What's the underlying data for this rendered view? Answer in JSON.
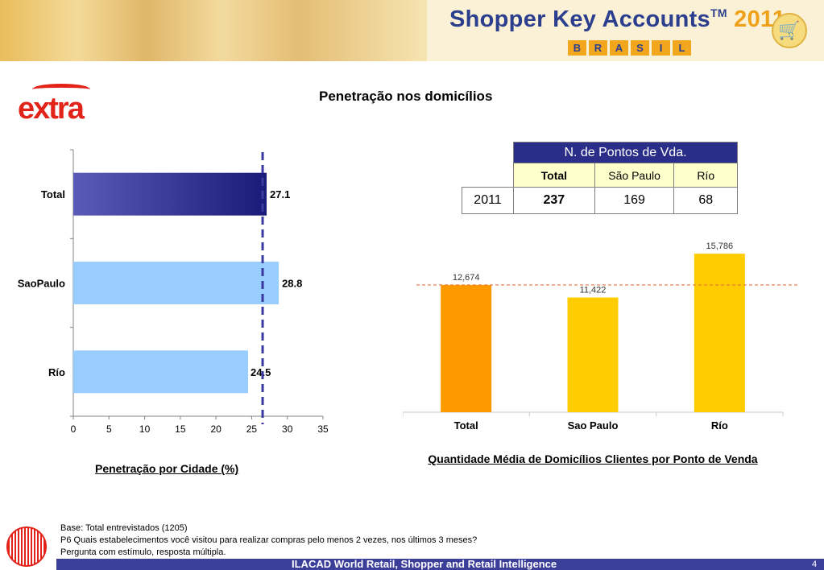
{
  "header": {
    "brand_title": "Shopper Key Accounts",
    "brand_tm": "TM",
    "brand_year": "2011",
    "brand_country_letters": [
      "B",
      "R",
      "A",
      "S",
      "I",
      "L"
    ],
    "cart_icon": "shopping-cart-icon"
  },
  "logo": {
    "text": "extra",
    "color": "#e2231a"
  },
  "page_title": "Penetração nos domicílios",
  "chart_data": [
    {
      "type": "bar",
      "orientation": "horizontal",
      "categories": [
        "Total",
        "SaoPaulo",
        "Río"
      ],
      "values": [
        27.1,
        28.8,
        24.5
      ],
      "value_labels": [
        "27.1",
        "28.8",
        "24.5"
      ],
      "xlim": [
        0,
        35
      ],
      "xticks": [
        0,
        5,
        10,
        15,
        20,
        25,
        30,
        35
      ],
      "reference_line": 27.1,
      "caption": "Penetração por Cidade (%)",
      "colors": {
        "highlight": "#1a1a7a",
        "bars": "#99ccff",
        "reference": "#3a3aa0"
      },
      "grid": false
    },
    {
      "type": "bar",
      "categories": [
        "Total",
        "Sao Paulo",
        "Río"
      ],
      "values": [
        12674,
        11422,
        15786
      ],
      "value_labels": [
        "12,674",
        "11,422",
        "15,786"
      ],
      "ylim": [
        0,
        17000
      ],
      "reference_line": 12674,
      "caption": "Quantidade Média de Domicílios Clientes por Ponto de Venda",
      "colors": {
        "total": "#ff9900",
        "cities": "#ffcc00",
        "reference": "#e8743a"
      },
      "grid": false
    }
  ],
  "pdv_table": {
    "header": "N. de Pontos de Vda.",
    "columns": [
      "Total",
      "São Paulo",
      "Río"
    ],
    "row_label": "2011",
    "values": [
      "237",
      "169",
      "68"
    ]
  },
  "footnotes": [
    "Base: Total entrevistados (1205)",
    "P6 Quais estabelecimentos você visitou para realizar compras pelo menos 2 vezes, nos últimos 3 meses?",
    "Pergunta com estímulo, resposta múltipla."
  ],
  "footer": {
    "text": "ILACAD World Retail, Shopper and Retail Intelligence",
    "page_number": "4"
  }
}
